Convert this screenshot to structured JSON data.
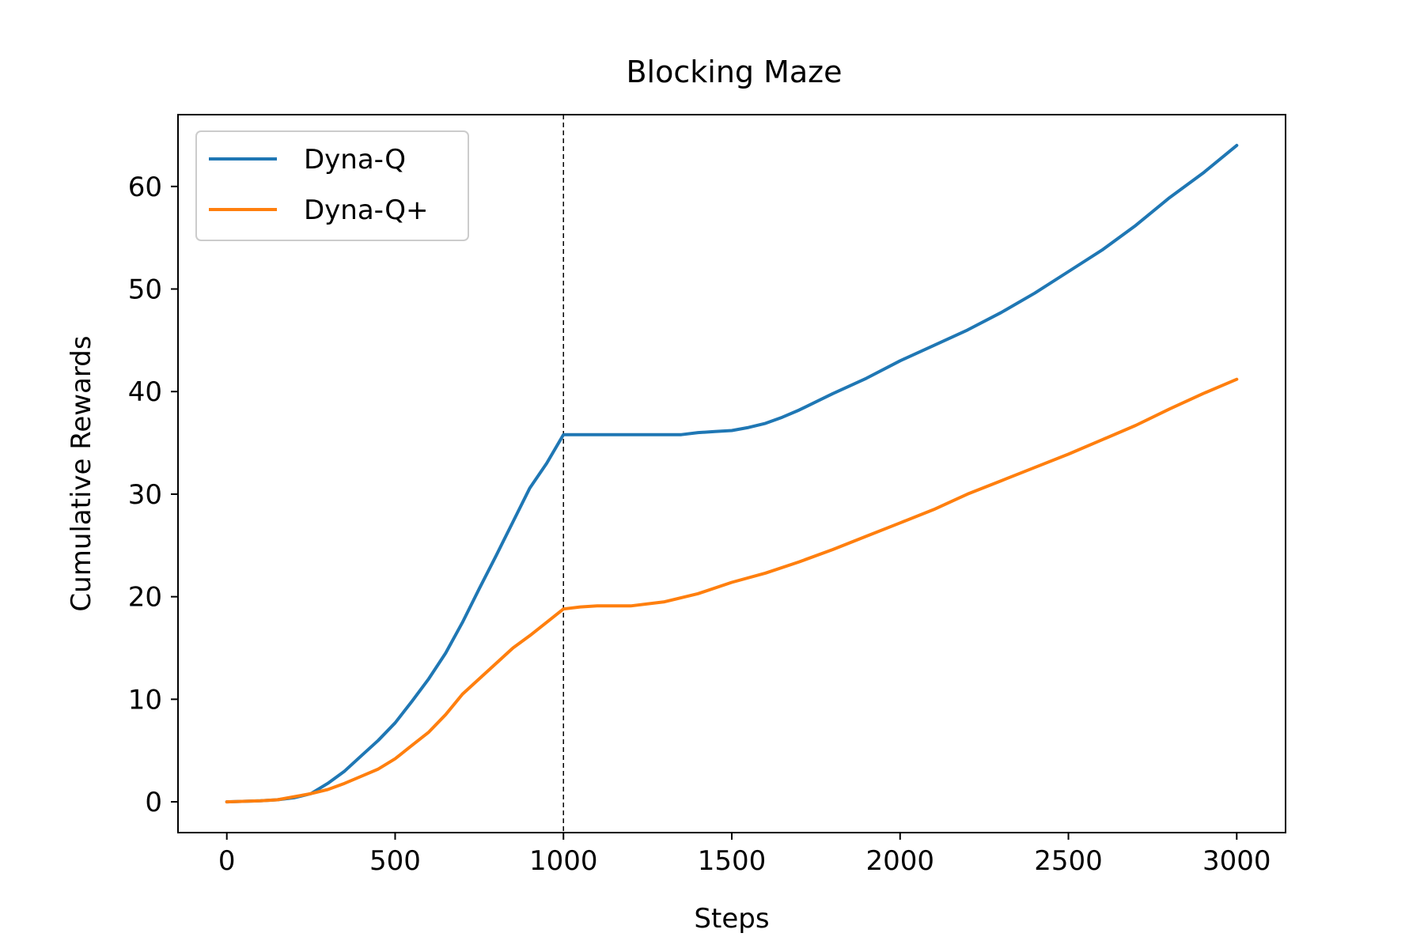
{
  "chart_data": {
    "type": "line",
    "title": "Blocking Maze",
    "xlabel": "Steps",
    "ylabel": "Cumulative Rewards",
    "xlim": [
      -145,
      3145
    ],
    "ylim": [
      -3.0,
      67.0
    ],
    "xticks": [
      0,
      500,
      1000,
      1500,
      2000,
      2500,
      3000
    ],
    "yticks": [
      0,
      10,
      20,
      30,
      40,
      50,
      60
    ],
    "grid": false,
    "legend_position": "top-left",
    "vline": {
      "x": 1000,
      "style": "dashed"
    },
    "series": [
      {
        "name": "Dyna-Q",
        "color": "#1f77b4",
        "x": [
          0,
          100,
          150,
          200,
          250,
          300,
          350,
          400,
          450,
          500,
          550,
          600,
          650,
          700,
          750,
          800,
          850,
          900,
          950,
          1000,
          1100,
          1200,
          1300,
          1350,
          1400,
          1450,
          1500,
          1550,
          1600,
          1650,
          1700,
          1800,
          1900,
          2000,
          2100,
          2200,
          2300,
          2400,
          2500,
          2600,
          2700,
          2800,
          2900,
          3000
        ],
        "values": [
          0,
          0.1,
          0.2,
          0.4,
          0.8,
          1.8,
          3.0,
          4.5,
          6.0,
          7.7,
          9.8,
          12.0,
          14.5,
          17.5,
          20.8,
          24.0,
          27.3,
          30.6,
          33.0,
          35.8,
          35.8,
          35.8,
          35.8,
          35.8,
          36.0,
          36.1,
          36.2,
          36.5,
          36.9,
          37.5,
          38.2,
          39.8,
          41.3,
          43.0,
          44.5,
          46.0,
          47.7,
          49.6,
          51.7,
          53.8,
          56.2,
          58.9,
          61.3,
          64.0
        ]
      },
      {
        "name": "Dyna-Q+",
        "color": "#ff7f0e",
        "x": [
          0,
          100,
          150,
          200,
          250,
          300,
          350,
          400,
          450,
          500,
          550,
          600,
          650,
          700,
          750,
          800,
          850,
          900,
          950,
          1000,
          1050,
          1100,
          1200,
          1300,
          1400,
          1500,
          1600,
          1700,
          1800,
          1900,
          2000,
          2100,
          2200,
          2300,
          2400,
          2500,
          2600,
          2700,
          2800,
          2900,
          3000
        ],
        "values": [
          0,
          0.1,
          0.2,
          0.5,
          0.8,
          1.2,
          1.8,
          2.5,
          3.2,
          4.2,
          5.5,
          6.8,
          8.5,
          10.5,
          12.0,
          13.5,
          15.0,
          16.2,
          17.5,
          18.8,
          19.0,
          19.1,
          19.1,
          19.5,
          20.3,
          21.4,
          22.3,
          23.4,
          24.6,
          25.9,
          27.2,
          28.5,
          30.0,
          31.3,
          32.6,
          33.9,
          35.3,
          36.7,
          38.3,
          39.8,
          41.2
        ]
      }
    ]
  }
}
